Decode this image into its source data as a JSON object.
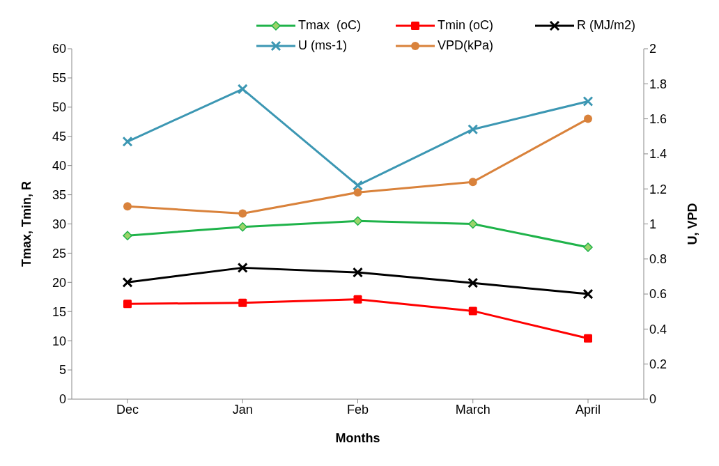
{
  "chart_data": {
    "type": "line",
    "xlabel": "Months",
    "ylabel": "Tmax, Tmin, R",
    "y2label": "U, VPD",
    "categories": [
      "Dec",
      "Jan",
      "Feb",
      "March",
      "April"
    ],
    "series": [
      {
        "name": "Tmax  (oC)",
        "color": "#1fb34a",
        "marker": "diamond",
        "values": [
          28,
          29.5,
          30.5,
          30,
          26
        ]
      },
      {
        "name": "Tmin (oC)",
        "color": "#ff0000",
        "marker": "square",
        "values": [
          16.3,
          16.5,
          17.1,
          15.1,
          10.4
        ]
      },
      {
        "name": "R (MJ/m2)",
        "color": "#000000",
        "marker": "cross",
        "values": [
          20,
          22.5,
          21.7,
          19.9,
          18
        ]
      },
      {
        "name": "U (ms-1)",
        "color": "#3c97b3",
        "marker": "cross",
        "axis": "y2",
        "values": [
          1.47,
          1.77,
          1.22,
          1.54,
          1.7
        ]
      },
      {
        "name": "VPD(kPa)",
        "color": "#d9823b",
        "marker": "circle",
        "axis": "y2",
        "values": [
          1.1,
          1.06,
          1.18,
          1.24,
          1.6
        ]
      }
    ],
    "ylim": [
      0,
      60
    ],
    "yticks": [
      0,
      5,
      10,
      15,
      20,
      25,
      30,
      35,
      40,
      45,
      50,
      55,
      60
    ],
    "y2lim": [
      0,
      2
    ],
    "y2ticks": [
      0,
      0.2,
      0.4,
      0.6,
      0.8,
      1,
      1.2,
      1.4,
      1.6,
      1.8,
      2
    ],
    "grid": false,
    "legend": "top right",
    "line_style": "solid"
  }
}
